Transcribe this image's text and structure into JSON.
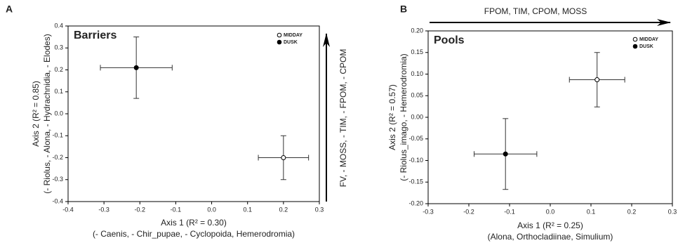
{
  "chart_data": [
    {
      "type": "scatter",
      "panel": "A",
      "title": "Barriers",
      "xlabel": [
        "Axis 1 (R² = 0.30)",
        "(- Caenis, - Chir_pupae, - Cyclopoida, Hemerodromia)"
      ],
      "ylabel": [
        "Axis 2 (R² = 0.85)",
        "(- Riolus, - Alona, - Hydrachnidia, - Elodes)"
      ],
      "annotation": "FV, - MOSS, - TIM, - FPOM, - CPOM",
      "xlim": [
        -0.4,
        0.3
      ],
      "ylim": [
        -0.4,
        0.4
      ],
      "xticks": [
        -0.4,
        -0.3,
        -0.2,
        -0.1,
        {
          "value": 0,
          "label": "0.0"
        },
        0.1,
        0.2,
        0.3
      ],
      "yticks": [
        -0.4,
        -0.3,
        -0.2,
        -0.1,
        {
          "value": 0,
          "label": "0.0"
        },
        0.1,
        0.2,
        0.3,
        0.4
      ],
      "series": [
        {
          "name": "MIDDAY",
          "marker": "open",
          "color": "#000000",
          "x": [
            0.2
          ],
          "values": [
            -0.2
          ],
          "x_error": [
            0.07
          ],
          "y_error": [
            0.1
          ]
        },
        {
          "name": "DUSK",
          "marker": "filled",
          "color": "#000000",
          "x": [
            -0.21
          ],
          "values": [
            0.21
          ],
          "x_error": [
            0.1
          ],
          "y_error": [
            0.14
          ]
        }
      ]
    },
    {
      "type": "scatter",
      "panel": "B",
      "title": "Pools",
      "xlabel": [
        "Axis 1 (R² = 0.25)",
        "(Alona, Orthocladiinae, Simulium)"
      ],
      "ylabel": [
        "Axis 2 (R² = 0.57)",
        "(- Riolus_imago, - Hemerodromia)"
      ],
      "annotation": "FPOM, TIM, CPOM, MOSS",
      "xlim": [
        -0.3,
        0.3
      ],
      "ylim": [
        -0.2,
        0.2
      ],
      "xticks": [
        -0.3,
        -0.2,
        -0.1,
        {
          "value": 0,
          "label": "0.0"
        },
        0.1,
        0.2,
        0.3
      ],
      "yticks": [
        {
          "value": -0.2,
          "label": "-0.20"
        },
        -0.15,
        {
          "value": -0.1,
          "label": "-0.10"
        },
        -0.05,
        {
          "value": 0,
          "label": "0.00"
        },
        0.05,
        {
          "value": 0.1,
          "label": "0.10"
        },
        0.15,
        {
          "value": 0.2,
          "label": "0.20"
        }
      ],
      "series": [
        {
          "name": "MIDDAY",
          "marker": "open",
          "color": "#000000",
          "x": [
            0.115
          ],
          "values": [
            0.087
          ],
          "x_error": [
            0.068
          ],
          "y_error": [
            0.063
          ]
        },
        {
          "name": "DUSK",
          "marker": "filled",
          "color": "#000000",
          "x": [
            -0.11
          ],
          "values": [
            -0.085
          ],
          "x_error": [
            0.077
          ],
          "y_error": [
            0.082
          ]
        }
      ]
    }
  ]
}
